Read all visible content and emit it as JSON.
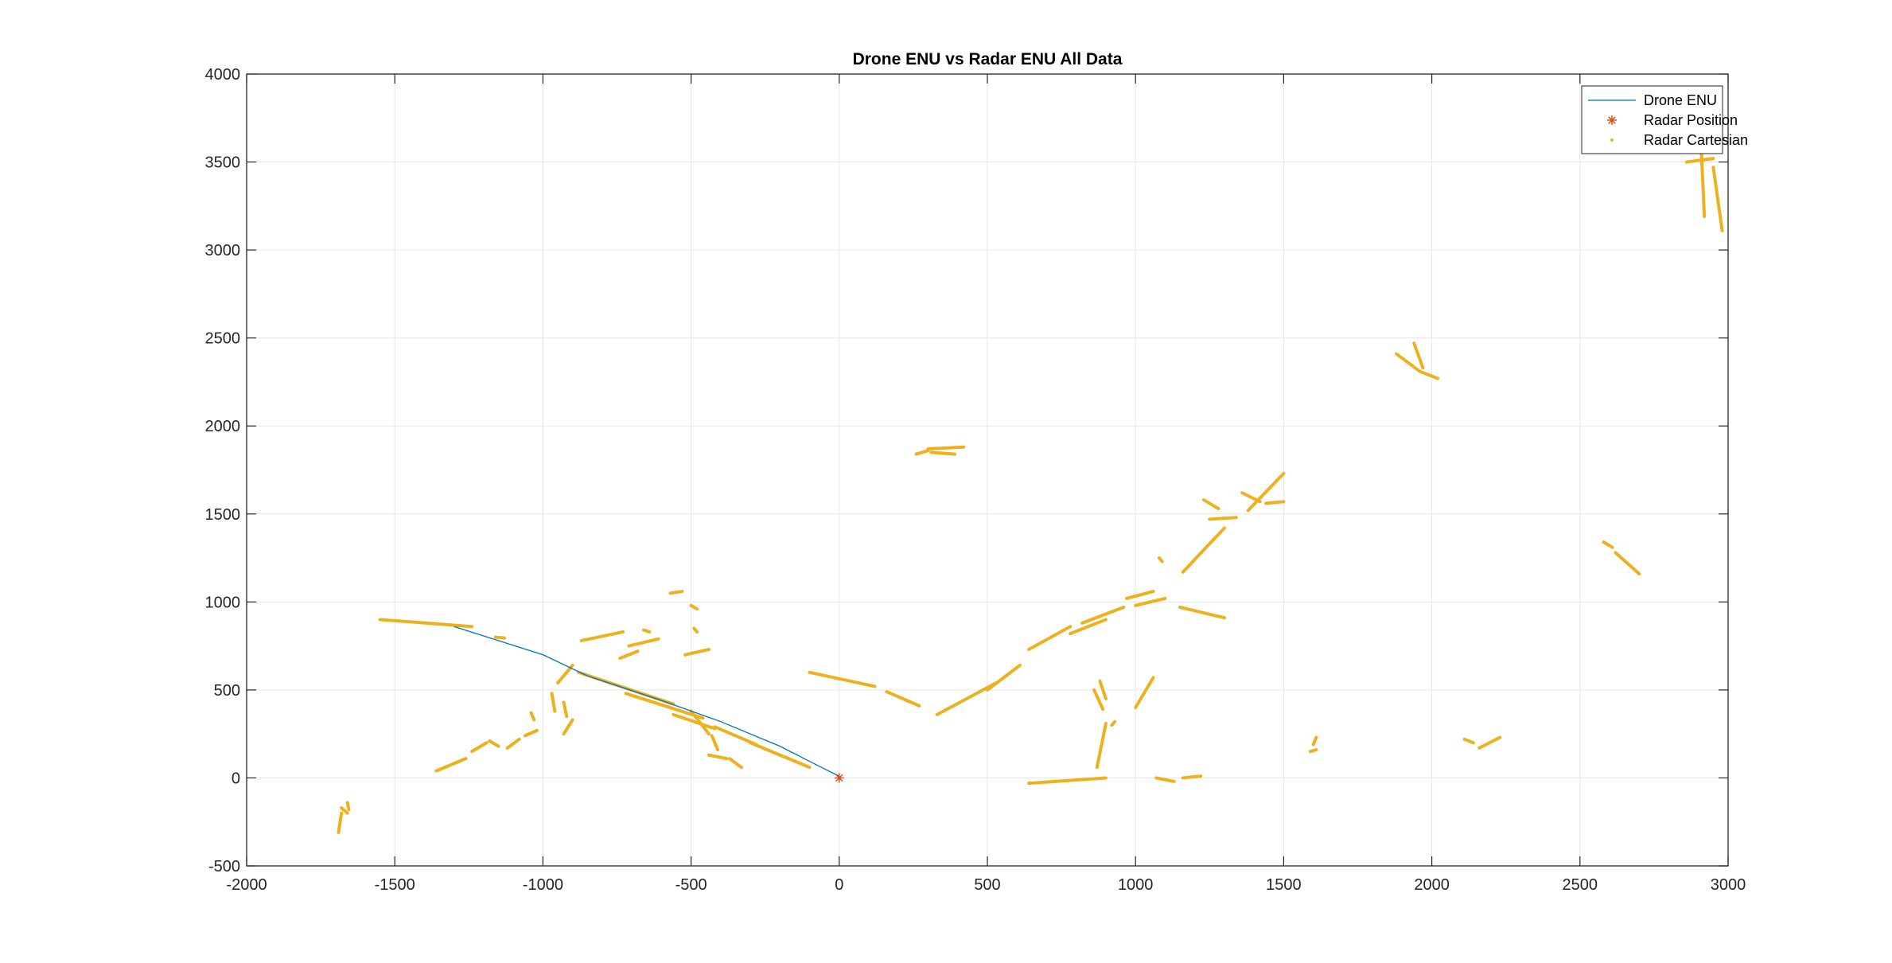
{
  "chart_data": {
    "type": "line",
    "title": "Drone ENU vs Radar ENU All Data",
    "xlabel": "",
    "ylabel": "",
    "xlim": [
      -2000,
      3000
    ],
    "ylim": [
      -500,
      4000
    ],
    "xticks": [
      -2000,
      -1500,
      -1000,
      -500,
      0,
      500,
      1000,
      1500,
      2000,
      2500,
      3000
    ],
    "yticks": [
      -500,
      0,
      500,
      1000,
      1500,
      2000,
      2500,
      3000,
      3500,
      4000
    ],
    "grid": true,
    "legend_position": "top-right",
    "legend": [
      "Drone ENU",
      "Radar Position",
      "Radar Cartesian"
    ],
    "colors": {
      "drone": "#0072BD",
      "radar_position": "#D95319",
      "radar_cartesian": "#EDB120",
      "grid": "#e6e6e6",
      "axes": "#262626"
    },
    "series": [
      {
        "name": "Drone ENU",
        "type": "line",
        "points": [
          [
            -1300,
            860
          ],
          [
            -1000,
            700
          ],
          [
            -850,
            580
          ],
          [
            -600,
            440
          ],
          [
            -400,
            320
          ],
          [
            -200,
            180
          ],
          [
            -60,
            60
          ],
          [
            0,
            10
          ]
        ]
      },
      {
        "name": "Radar Position",
        "type": "marker",
        "points": [
          [
            0,
            0
          ]
        ]
      },
      {
        "name": "Radar Cartesian",
        "type": "scatter-segments",
        "segments": [
          [
            [
              -1550,
              900
            ],
            [
              -1240,
              860
            ]
          ],
          [
            [
              -1160,
              800
            ],
            [
              -1130,
              795
            ]
          ],
          [
            [
              -870,
              780
            ],
            [
              -730,
              830
            ]
          ],
          [
            [
              -740,
              680
            ],
            [
              -680,
              720
            ]
          ],
          [
            [
              -710,
              750
            ],
            [
              -610,
              790
            ]
          ],
          [
            [
              -660,
              840
            ],
            [
              -640,
              830
            ]
          ],
          [
            [
              -570,
              1050
            ],
            [
              -530,
              1060
            ]
          ],
          [
            [
              -500,
              980
            ],
            [
              -480,
              960
            ]
          ],
          [
            [
              -520,
              700
            ],
            [
              -440,
              730
            ]
          ],
          [
            [
              -490,
              850
            ],
            [
              -480,
              830
            ]
          ],
          [
            [
              -950,
              540
            ],
            [
              -900,
              640
            ]
          ],
          [
            [
              -970,
              480
            ],
            [
              -960,
              380
            ]
          ],
          [
            [
              -930,
              430
            ],
            [
              -920,
              350
            ]
          ],
          [
            [
              -900,
              330
            ],
            [
              -930,
              250
            ]
          ],
          [
            [
              -880,
              600
            ],
            [
              -560,
              420
            ]
          ],
          [
            [
              -720,
              480
            ],
            [
              -460,
              340
            ]
          ],
          [
            [
              -500,
              380
            ],
            [
              -440,
              250
            ]
          ],
          [
            [
              -430,
              240
            ],
            [
              -410,
              160
            ]
          ],
          [
            [
              -560,
              360
            ],
            [
              -420,
              280
            ]
          ],
          [
            [
              -420,
              290
            ],
            [
              -280,
              190
            ]
          ],
          [
            [
              -300,
              200
            ],
            [
              -100,
              60
            ]
          ],
          [
            [
              -440,
              130
            ],
            [
              -380,
              110
            ]
          ],
          [
            [
              -370,
              110
            ],
            [
              -330,
              60
            ]
          ],
          [
            [
              -1360,
              40
            ],
            [
              -1260,
              110
            ]
          ],
          [
            [
              -1240,
              150
            ],
            [
              -1190,
              200
            ]
          ],
          [
            [
              -1180,
              210
            ],
            [
              -1150,
              180
            ]
          ],
          [
            [
              -1120,
              170
            ],
            [
              -1080,
              220
            ]
          ],
          [
            [
              -1060,
              240
            ],
            [
              -1020,
              270
            ]
          ],
          [
            [
              -1040,
              370
            ],
            [
              -1030,
              330
            ]
          ],
          [
            [
              -1680,
              -170
            ],
            [
              -1660,
              -200
            ]
          ],
          [
            [
              -1680,
              -200
            ],
            [
              -1690,
              -310
            ]
          ],
          [
            [
              -1660,
              -140
            ],
            [
              -1655,
              -180
            ]
          ],
          [
            [
              -100,
              600
            ],
            [
              120,
              520
            ]
          ],
          [
            [
              160,
              490
            ],
            [
              270,
              410
            ]
          ],
          [
            [
              330,
              360
            ],
            [
              530,
              540
            ]
          ],
          [
            [
              500,
              500
            ],
            [
              610,
              640
            ]
          ],
          [
            [
              640,
              730
            ],
            [
              780,
              860
            ]
          ],
          [
            [
              780,
              820
            ],
            [
              900,
              900
            ]
          ],
          [
            [
              820,
              880
            ],
            [
              960,
              970
            ]
          ],
          [
            [
              860,
              500
            ],
            [
              890,
              390
            ]
          ],
          [
            [
              880,
              550
            ],
            [
              900,
              450
            ]
          ],
          [
            [
              900,
              310
            ],
            [
              870,
              60
            ]
          ],
          [
            [
              930,
              320
            ],
            [
              920,
              300
            ]
          ],
          [
            [
              640,
              -30
            ],
            [
              900,
              0
            ]
          ],
          [
            [
              1000,
              400
            ],
            [
              1060,
              570
            ]
          ],
          [
            [
              1070,
              0
            ],
            [
              1130,
              -20
            ]
          ],
          [
            [
              1160,
              0
            ],
            [
              1220,
              10
            ]
          ],
          [
            [
              970,
              1020
            ],
            [
              1060,
              1060
            ]
          ],
          [
            [
              1000,
              980
            ],
            [
              1100,
              1020
            ]
          ],
          [
            [
              1150,
              970
            ],
            [
              1300,
              910
            ]
          ],
          [
            [
              1080,
              1250
            ],
            [
              1090,
              1230
            ]
          ],
          [
            [
              1160,
              1170
            ],
            [
              1300,
              1420
            ]
          ],
          [
            [
              1230,
              1580
            ],
            [
              1280,
              1530
            ]
          ],
          [
            [
              1250,
              1470
            ],
            [
              1340,
              1480
            ]
          ],
          [
            [
              1380,
              1520
            ],
            [
              1500,
              1730
            ]
          ],
          [
            [
              1440,
              1560
            ],
            [
              1500,
              1570
            ]
          ],
          [
            [
              1360,
              1620
            ],
            [
              1420,
              1570
            ]
          ],
          [
            [
              260,
              1840
            ],
            [
              300,
              1860
            ]
          ],
          [
            [
              300,
              1870
            ],
            [
              420,
              1880
            ]
          ],
          [
            [
              310,
              1850
            ],
            [
              390,
              1840
            ]
          ],
          [
            [
              1590,
              150
            ],
            [
              1610,
              160
            ]
          ],
          [
            [
              1600,
              190
            ],
            [
              1610,
              230
            ]
          ],
          [
            [
              1880,
              2410
            ],
            [
              1960,
              2310
            ]
          ],
          [
            [
              1940,
              2470
            ],
            [
              1970,
              2330
            ]
          ],
          [
            [
              1960,
              2310
            ],
            [
              2020,
              2270
            ]
          ],
          [
            [
              2110,
              220
            ],
            [
              2140,
              200
            ]
          ],
          [
            [
              2160,
              170
            ],
            [
              2230,
              230
            ]
          ],
          [
            [
              2580,
              1340
            ],
            [
              2610,
              1310
            ]
          ],
          [
            [
              2620,
              1280
            ],
            [
              2700,
              1160
            ]
          ],
          [
            [
              2860,
              3500
            ],
            [
              2950,
              3520
            ]
          ],
          [
            [
              2910,
              3550
            ],
            [
              2920,
              3190
            ]
          ],
          [
            [
              2950,
              3470
            ],
            [
              2980,
              3110
            ]
          ],
          [
            [
              2950,
              3690
            ],
            [
              2970,
              3650
            ]
          ]
        ]
      }
    ]
  }
}
